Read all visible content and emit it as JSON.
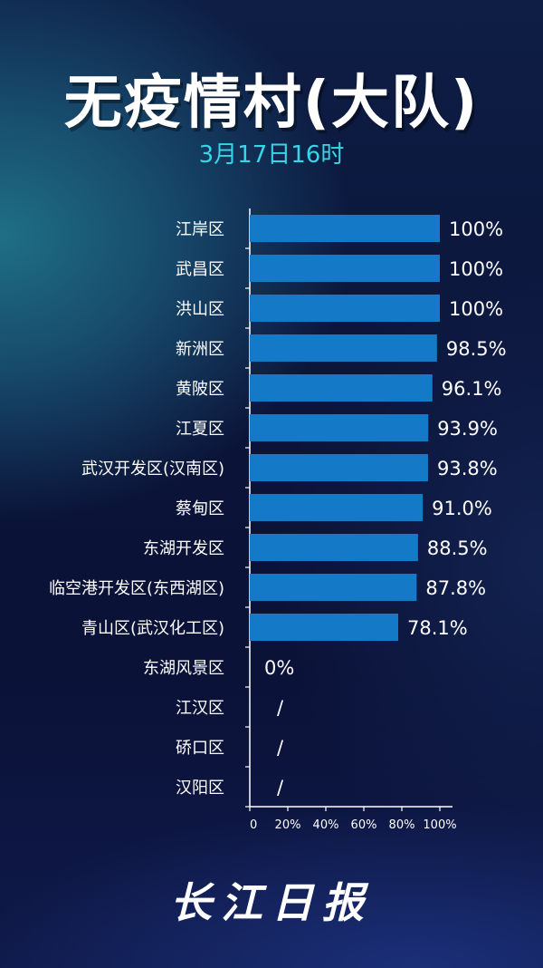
{
  "header": {
    "title": "无疫情村(大队)",
    "subtitle": "3月17日16时"
  },
  "footer": {
    "brand": "长江日报"
  },
  "colors": {
    "bar": "#1479c7",
    "text": "#ffffff",
    "subtitle": "#35d6e8",
    "axis": "#ffffff"
  },
  "chart_data": {
    "type": "bar",
    "orientation": "horizontal",
    "title": "无疫情村(大队)",
    "subtitle": "3月17日16时",
    "xlim": [
      0,
      100
    ],
    "x_ticks": [
      "0",
      "20%",
      "40%",
      "60%",
      "80%",
      "100%"
    ],
    "categories": [
      "江岸区",
      "武昌区",
      "洪山区",
      "新洲区",
      "黄陂区",
      "江夏区",
      "武汉开发区(汉南区)",
      "蔡甸区",
      "东湖开发区",
      "临空港开发区(东西湖区)",
      "青山区(武汉化工区)",
      "东湖风景区",
      "江汉区",
      "硚口区",
      "汉阳区"
    ],
    "values": [
      100,
      100,
      100,
      98.5,
      96.1,
      93.9,
      93.8,
      91.0,
      88.5,
      87.8,
      78.1,
      0,
      null,
      null,
      null
    ],
    "value_labels": [
      "100%",
      "100%",
      "100%",
      "98.5%",
      "96.1%",
      "93.9%",
      "93.8%",
      "91.0%",
      "88.5%",
      "87.8%",
      "78.1%",
      "0%",
      "/",
      "/",
      "/"
    ],
    "grid": false,
    "legend": "none"
  }
}
